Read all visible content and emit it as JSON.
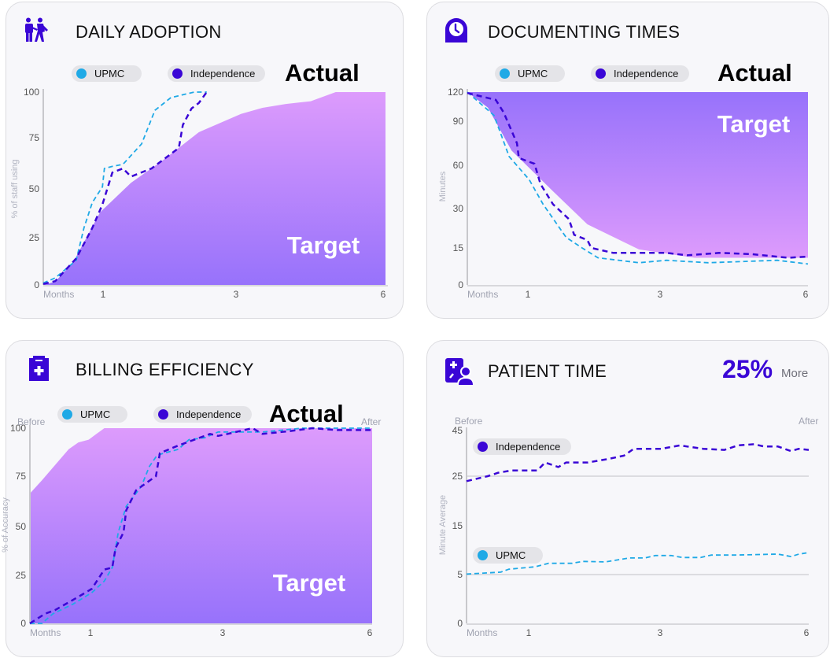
{
  "colors": {
    "upmc": "#1fa9e6",
    "independence": "#3a06d6",
    "accent": "#3a06d6",
    "target_light": "#dd9bfc",
    "target_dark": "#9772fb"
  },
  "chart_data": [
    {
      "type": "area",
      "title": "DAILY ADOPTION",
      "icon": "people-walking-icon",
      "ylabel": "% of staff using",
      "xlabel": "Months",
      "x_ticks": [
        "1",
        "3",
        "6"
      ],
      "x_tick_values": [
        1,
        3,
        6
      ],
      "y_ticks": [
        "0",
        "25",
        "50",
        "75",
        "100"
      ],
      "y_tick_values": [
        0,
        25,
        50,
        75,
        100
      ],
      "xlim": [
        0,
        6
      ],
      "ylim": [
        0,
        100
      ],
      "actual_label": "Actual",
      "target_label": "Target",
      "target": [
        [
          0,
          0
        ],
        [
          0.2,
          1.7
        ],
        [
          0.5,
          12
        ],
        [
          0.95,
          38
        ],
        [
          1.42,
          53
        ],
        [
          1.9,
          64
        ],
        [
          2.44,
          78
        ],
        [
          3.1,
          88
        ],
        [
          3.53,
          91.4
        ],
        [
          4.0,
          93.5
        ],
        [
          4.5,
          95
        ],
        [
          5.0,
          100
        ],
        [
          6,
          100
        ]
      ],
      "series": [
        {
          "name": "UPMC",
          "color": "#1fa9e6",
          "points": [
            [
              0,
              1
            ],
            [
              0.2,
              3.7
            ],
            [
              0.55,
              13
            ],
            [
              0.68,
              30
            ],
            [
              0.82,
              43
            ],
            [
              0.99,
              51
            ],
            [
              1.02,
              60
            ],
            [
              1.14,
              61
            ],
            [
              1.3,
              62
            ],
            [
              1.58,
              72
            ],
            [
              1.78,
              90
            ],
            [
              2.02,
              97
            ],
            [
              2.37,
              100
            ],
            [
              2.56,
              100
            ]
          ]
        },
        {
          "name": "Independence",
          "color": "#3a06d6",
          "points": [
            [
              0,
              0.5
            ],
            [
              0.2,
              2
            ],
            [
              0.55,
              14
            ],
            [
              0.82,
              30
            ],
            [
              0.99,
              42
            ],
            [
              1.14,
              58
            ],
            [
              1.3,
              60
            ],
            [
              1.42,
              56
            ],
            [
              1.73,
              60
            ],
            [
              2.14,
              70
            ],
            [
              2.2,
              82
            ],
            [
              2.33,
              91
            ],
            [
              2.44,
              94
            ],
            [
              2.56,
              100
            ]
          ]
        }
      ]
    },
    {
      "type": "area",
      "title": "DOCUMENTING TIMES",
      "icon": "clock-icon",
      "ylabel": "Minutes",
      "xlabel": "Months",
      "x_ticks": [
        "1",
        "3",
        "6"
      ],
      "x_tick_values": [
        1,
        3,
        6
      ],
      "y_ticks": [
        "0",
        "15",
        "30",
        "60",
        "90",
        "120"
      ],
      "y_tick_values": [
        0,
        15,
        30,
        60,
        90,
        120
      ],
      "xlim": [
        0,
        6
      ],
      "ylim": [
        0,
        120
      ],
      "actual_label": "Actual",
      "target_label": "Target",
      "target": [
        [
          0,
          120
        ],
        [
          0.34,
          104
        ],
        [
          0.73,
          70
        ],
        [
          1.38,
          42
        ],
        [
          1.9,
          24
        ],
        [
          2.68,
          14.4
        ],
        [
          3.7,
          11
        ],
        [
          6,
          11
        ]
      ],
      "series": [
        {
          "name": "UPMC",
          "color": "#1fa9e6",
          "points": [
            [
              0,
              120
            ],
            [
              0.44,
              96
            ],
            [
              0.53,
              84
            ],
            [
              0.69,
              66
            ],
            [
              1.02,
              50
            ],
            [
              1.23,
              33
            ],
            [
              1.58,
              19
            ],
            [
              1.82,
              15
            ],
            [
              2.06,
              11
            ],
            [
              2.68,
              9
            ],
            [
              3.13,
              10
            ],
            [
              3.98,
              9
            ],
            [
              5.38,
              10
            ],
            [
              6,
              8.5
            ]
          ]
        },
        {
          "name": "Independence",
          "color": "#3a06d6",
          "points": [
            [
              0,
              119
            ],
            [
              0.47,
              112
            ],
            [
              0.6,
              99
            ],
            [
              0.82,
              75
            ],
            [
              0.85,
              65
            ],
            [
              1.1,
              61
            ],
            [
              1.19,
              47
            ],
            [
              1.38,
              33
            ],
            [
              1.62,
              26
            ],
            [
              1.7,
              20
            ],
            [
              1.9,
              18
            ],
            [
              1.96,
              15
            ],
            [
              2.29,
              13
            ],
            [
              3.13,
              13
            ],
            [
              3.55,
              12
            ],
            [
              4.2,
              13
            ],
            [
              4.84,
              12.5
            ],
            [
              5.6,
              11
            ],
            [
              6,
              11.5
            ]
          ]
        }
      ]
    },
    {
      "type": "area",
      "title": "BILLING EFFICIENCY",
      "icon": "clipboard-plus-icon",
      "ylabel": "% of Accuracy",
      "xlabel": "Months",
      "before_label": "Before",
      "after_label": "After",
      "x_ticks": [
        "1",
        "3",
        "6"
      ],
      "x_tick_values": [
        1,
        3,
        6
      ],
      "y_ticks": [
        "0",
        "25",
        "50",
        "75",
        "100"
      ],
      "y_tick_values": [
        0,
        25,
        50,
        75,
        100
      ],
      "xlim": [
        0,
        6
      ],
      "ylim": [
        0,
        100
      ],
      "actual_label": "Actual",
      "target_label": "Target",
      "target": [
        [
          0,
          66.4
        ],
        [
          0.2,
          73
        ],
        [
          0.64,
          89
        ],
        [
          0.8,
          92.6
        ],
        [
          0.97,
          94
        ],
        [
          1.09,
          97
        ],
        [
          1.21,
          100
        ],
        [
          6,
          100
        ]
      ],
      "series": [
        {
          "name": "UPMC",
          "color": "#1fa9e6",
          "points": [
            [
              0,
              0
            ],
            [
              0.2,
              0
            ],
            [
              0.38,
              5
            ],
            [
              0.71,
              10
            ],
            [
              1.02,
              16
            ],
            [
              1.21,
              22
            ],
            [
              1.33,
              29
            ],
            [
              1.42,
              47
            ],
            [
              1.54,
              60
            ],
            [
              1.77,
              70
            ],
            [
              1.89,
              80
            ],
            [
              2.01,
              86
            ],
            [
              2.33,
              89
            ],
            [
              2.49,
              94
            ],
            [
              2.73,
              95
            ],
            [
              2.93,
              98
            ],
            [
              3.8,
              98
            ],
            [
              4.6,
              100
            ],
            [
              5.4,
              100
            ],
            [
              6,
              100
            ]
          ]
        },
        {
          "name": "Independence",
          "color": "#3a06d6",
          "points": [
            [
              0,
              0
            ],
            [
              0.25,
              5
            ],
            [
              0.42,
              7
            ],
            [
              0.81,
              14
            ],
            [
              1.02,
              18
            ],
            [
              1.21,
              28
            ],
            [
              1.33,
              29
            ],
            [
              1.38,
              39
            ],
            [
              1.5,
              47
            ],
            [
              1.54,
              58
            ],
            [
              1.69,
              68
            ],
            [
              1.86,
              72
            ],
            [
              1.99,
              75
            ],
            [
              2.05,
              87
            ],
            [
              2.33,
              91
            ],
            [
              2.49,
              93
            ],
            [
              2.81,
              97
            ],
            [
              2.93,
              96
            ],
            [
              3.1,
              97
            ],
            [
              3.6,
              100
            ],
            [
              3.8,
              97
            ],
            [
              4.35,
              98.5
            ],
            [
              4.8,
              100
            ],
            [
              5.3,
              99
            ],
            [
              6,
              99
            ]
          ]
        }
      ]
    },
    {
      "type": "line",
      "title": "PATIENT TIME",
      "icon": "patient-chart-icon",
      "stat_value": "25%",
      "stat_suffix": "More",
      "ylabel": "Minute Average",
      "xlabel": "Months",
      "before_label": "Before",
      "after_label": "After",
      "x_ticks": [
        "1",
        "3",
        "6"
      ],
      "x_tick_values": [
        1,
        3,
        6
      ],
      "y_ticks": [
        "0",
        "5",
        "15",
        "25",
        "45"
      ],
      "y_tick_values": [
        0,
        5,
        15,
        25,
        45
      ],
      "gridlines": [
        5,
        25
      ],
      "xlim": [
        0,
        6
      ],
      "ylim": [
        0,
        45
      ],
      "series": [
        {
          "name": "Independence",
          "color": "#3a06d6",
          "points": [
            [
              0,
              24
            ],
            [
              0.34,
              25
            ],
            [
              0.51,
              26.5
            ],
            [
              0.72,
              27.5
            ],
            [
              1.13,
              27.5
            ],
            [
              1.25,
              31
            ],
            [
              1.45,
              29
            ],
            [
              1.57,
              31
            ],
            [
              1.9,
              31
            ],
            [
              2.2,
              32.5
            ],
            [
              2.45,
              34
            ],
            [
              2.6,
              37
            ],
            [
              3.02,
              37
            ],
            [
              3.4,
              38.5
            ],
            [
              3.55,
              38
            ],
            [
              3.87,
              37
            ],
            [
              4.3,
              36.5
            ],
            [
              4.57,
              38.5
            ],
            [
              4.9,
              39
            ],
            [
              5.1,
              38
            ],
            [
              5.38,
              38
            ],
            [
              5.64,
              36
            ],
            [
              5.8,
              37
            ],
            [
              6,
              36.5
            ]
          ]
        },
        {
          "name": "UPMC",
          "color": "#1fa9e6",
          "points": [
            [
              0,
              5.1
            ],
            [
              0.55,
              5.5
            ],
            [
              0.68,
              6.1
            ],
            [
              1.1,
              6.6
            ],
            [
              1.3,
              7.3
            ],
            [
              1.66,
              7.3
            ],
            [
              1.82,
              7.7
            ],
            [
              2.17,
              7.6
            ],
            [
              2.53,
              8.4
            ],
            [
              2.77,
              8.4
            ],
            [
              2.93,
              8.9
            ],
            [
              3.22,
              8.9
            ],
            [
              3.45,
              8.5
            ],
            [
              3.82,
              8.5
            ],
            [
              4.03,
              9
            ],
            [
              4.51,
              9
            ],
            [
              5.38,
              9.2
            ],
            [
              5.64,
              8.7
            ],
            [
              5.8,
              9.2
            ],
            [
              6,
              9.5
            ]
          ]
        }
      ]
    }
  ]
}
